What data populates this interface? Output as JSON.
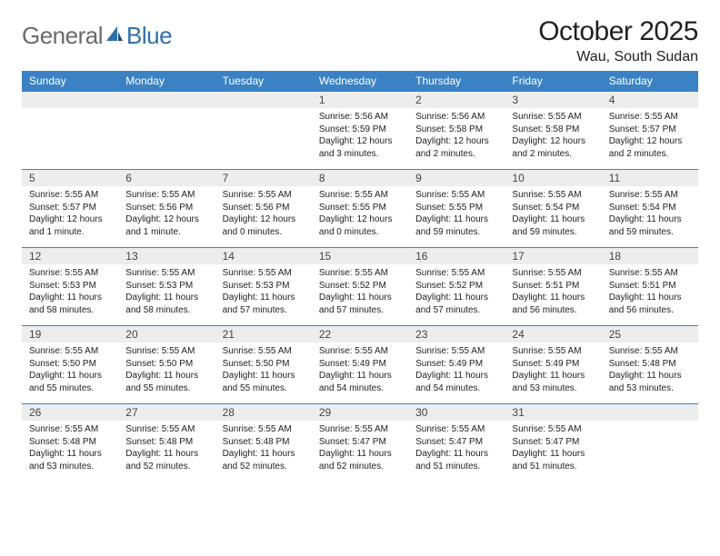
{
  "logo": {
    "text_a": "General",
    "text_b": "Blue",
    "color_a": "#6b6b6b",
    "color_b": "#2f6fa8"
  },
  "title": "October 2025",
  "location": "Wau, South Sudan",
  "header_bg": "#3b82c4",
  "daynum_bg": "#ededed",
  "border_color": "#3b82c4",
  "weekdays": [
    "Sunday",
    "Monday",
    "Tuesday",
    "Wednesday",
    "Thursday",
    "Friday",
    "Saturday"
  ],
  "weeks": [
    [
      null,
      null,
      null,
      {
        "n": "1",
        "sunrise": "5:56 AM",
        "sunset": "5:59 PM",
        "daylight": "12 hours and 3 minutes."
      },
      {
        "n": "2",
        "sunrise": "5:56 AM",
        "sunset": "5:58 PM",
        "daylight": "12 hours and 2 minutes."
      },
      {
        "n": "3",
        "sunrise": "5:55 AM",
        "sunset": "5:58 PM",
        "daylight": "12 hours and 2 minutes."
      },
      {
        "n": "4",
        "sunrise": "5:55 AM",
        "sunset": "5:57 PM",
        "daylight": "12 hours and 2 minutes."
      }
    ],
    [
      {
        "n": "5",
        "sunrise": "5:55 AM",
        "sunset": "5:57 PM",
        "daylight": "12 hours and 1 minute."
      },
      {
        "n": "6",
        "sunrise": "5:55 AM",
        "sunset": "5:56 PM",
        "daylight": "12 hours and 1 minute."
      },
      {
        "n": "7",
        "sunrise": "5:55 AM",
        "sunset": "5:56 PM",
        "daylight": "12 hours and 0 minutes."
      },
      {
        "n": "8",
        "sunrise": "5:55 AM",
        "sunset": "5:55 PM",
        "daylight": "12 hours and 0 minutes."
      },
      {
        "n": "9",
        "sunrise": "5:55 AM",
        "sunset": "5:55 PM",
        "daylight": "11 hours and 59 minutes."
      },
      {
        "n": "10",
        "sunrise": "5:55 AM",
        "sunset": "5:54 PM",
        "daylight": "11 hours and 59 minutes."
      },
      {
        "n": "11",
        "sunrise": "5:55 AM",
        "sunset": "5:54 PM",
        "daylight": "11 hours and 59 minutes."
      }
    ],
    [
      {
        "n": "12",
        "sunrise": "5:55 AM",
        "sunset": "5:53 PM",
        "daylight": "11 hours and 58 minutes."
      },
      {
        "n": "13",
        "sunrise": "5:55 AM",
        "sunset": "5:53 PM",
        "daylight": "11 hours and 58 minutes."
      },
      {
        "n": "14",
        "sunrise": "5:55 AM",
        "sunset": "5:53 PM",
        "daylight": "11 hours and 57 minutes."
      },
      {
        "n": "15",
        "sunrise": "5:55 AM",
        "sunset": "5:52 PM",
        "daylight": "11 hours and 57 minutes."
      },
      {
        "n": "16",
        "sunrise": "5:55 AM",
        "sunset": "5:52 PM",
        "daylight": "11 hours and 57 minutes."
      },
      {
        "n": "17",
        "sunrise": "5:55 AM",
        "sunset": "5:51 PM",
        "daylight": "11 hours and 56 minutes."
      },
      {
        "n": "18",
        "sunrise": "5:55 AM",
        "sunset": "5:51 PM",
        "daylight": "11 hours and 56 minutes."
      }
    ],
    [
      {
        "n": "19",
        "sunrise": "5:55 AM",
        "sunset": "5:50 PM",
        "daylight": "11 hours and 55 minutes."
      },
      {
        "n": "20",
        "sunrise": "5:55 AM",
        "sunset": "5:50 PM",
        "daylight": "11 hours and 55 minutes."
      },
      {
        "n": "21",
        "sunrise": "5:55 AM",
        "sunset": "5:50 PM",
        "daylight": "11 hours and 55 minutes."
      },
      {
        "n": "22",
        "sunrise": "5:55 AM",
        "sunset": "5:49 PM",
        "daylight": "11 hours and 54 minutes."
      },
      {
        "n": "23",
        "sunrise": "5:55 AM",
        "sunset": "5:49 PM",
        "daylight": "11 hours and 54 minutes."
      },
      {
        "n": "24",
        "sunrise": "5:55 AM",
        "sunset": "5:49 PM",
        "daylight": "11 hours and 53 minutes."
      },
      {
        "n": "25",
        "sunrise": "5:55 AM",
        "sunset": "5:48 PM",
        "daylight": "11 hours and 53 minutes."
      }
    ],
    [
      {
        "n": "26",
        "sunrise": "5:55 AM",
        "sunset": "5:48 PM",
        "daylight": "11 hours and 53 minutes."
      },
      {
        "n": "27",
        "sunrise": "5:55 AM",
        "sunset": "5:48 PM",
        "daylight": "11 hours and 52 minutes."
      },
      {
        "n": "28",
        "sunrise": "5:55 AM",
        "sunset": "5:48 PM",
        "daylight": "11 hours and 52 minutes."
      },
      {
        "n": "29",
        "sunrise": "5:55 AM",
        "sunset": "5:47 PM",
        "daylight": "11 hours and 52 minutes."
      },
      {
        "n": "30",
        "sunrise": "5:55 AM",
        "sunset": "5:47 PM",
        "daylight": "11 hours and 51 minutes."
      },
      {
        "n": "31",
        "sunrise": "5:55 AM",
        "sunset": "5:47 PM",
        "daylight": "11 hours and 51 minutes."
      },
      null
    ]
  ],
  "labels": {
    "sunrise": "Sunrise:",
    "sunset": "Sunset:",
    "daylight": "Daylight:"
  }
}
